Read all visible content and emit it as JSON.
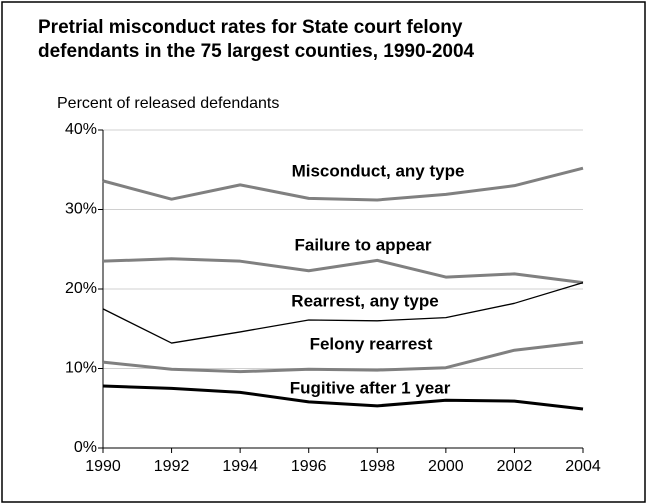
{
  "chart_data": {
    "type": "line",
    "title": "Pretrial misconduct rates for State court felony defendants in the 75 largest counties, 1990-2004",
    "y_label": "Percent of released defendants",
    "x": [
      1990,
      1992,
      1994,
      1996,
      1998,
      2000,
      2002,
      2004
    ],
    "xlim": [
      1990,
      2004
    ],
    "xticks": [
      1990,
      1992,
      1994,
      1996,
      1998,
      2000,
      2002,
      2004
    ],
    "ylim": [
      0,
      40
    ],
    "yticks": [
      {
        "value": 0,
        "label": "0%"
      },
      {
        "value": 10,
        "label": "10%"
      },
      {
        "value": 20,
        "label": "20%"
      },
      {
        "value": 30,
        "label": "30%"
      },
      {
        "value": 40,
        "label": "40%"
      }
    ],
    "grid": true,
    "series": [
      {
        "name": "Misconduct, any type",
        "color": "#808080",
        "values": [
          33.6,
          31.3,
          33.1,
          31.4,
          31.2,
          31.9,
          33.0,
          35.2
        ]
      },
      {
        "name": "Failure to appear",
        "color": "#808080",
        "values": [
          23.5,
          23.8,
          23.5,
          22.3,
          23.6,
          21.5,
          21.9,
          20.8
        ]
      },
      {
        "name": "Rearrest, any type",
        "color": "#000000",
        "values": [
          17.5,
          13.2,
          14.6,
          16.1,
          16.0,
          16.4,
          18.2,
          20.8
        ]
      },
      {
        "name": "Felony rearrest",
        "color": "#808080",
        "values": [
          10.8,
          9.9,
          9.6,
          9.9,
          9.8,
          10.1,
          12.3,
          13.3
        ]
      },
      {
        "name": "Fugitive after 1 year",
        "color": "#000000",
        "values": [
          7.8,
          7.5,
          7.0,
          5.8,
          5.3,
          6.0,
          5.9,
          4.9
        ]
      }
    ]
  }
}
